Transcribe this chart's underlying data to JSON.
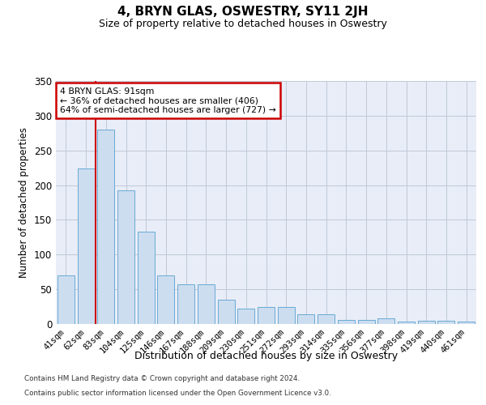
{
  "title": "4, BRYN GLAS, OSWESTRY, SY11 2JH",
  "subtitle": "Size of property relative to detached houses in Oswestry",
  "xlabel": "Distribution of detached houses by size in Oswestry",
  "ylabel": "Number of detached properties",
  "categories": [
    "41sqm",
    "62sqm",
    "83sqm",
    "104sqm",
    "125sqm",
    "146sqm",
    "167sqm",
    "188sqm",
    "209sqm",
    "230sqm",
    "251sqm",
    "272sqm",
    "293sqm",
    "314sqm",
    "335sqm",
    "356sqm",
    "377sqm",
    "398sqm",
    "419sqm",
    "440sqm",
    "461sqm"
  ],
  "values": [
    70,
    224,
    280,
    193,
    133,
    70,
    57,
    57,
    35,
    22,
    25,
    25,
    14,
    14,
    6,
    6,
    8,
    4,
    5,
    5,
    3
  ],
  "bar_color": "#ccddf0",
  "bar_edge_color": "#6aaad4",
  "vline_color": "#cc0000",
  "annotation_text": "4 BRYN GLAS: 91sqm\n← 36% of detached houses are smaller (406)\n64% of semi-detached houses are larger (727) →",
  "annotation_box_facecolor": "white",
  "annotation_box_edgecolor": "#cc0000",
  "ylim_max": 350,
  "yticks": [
    0,
    50,
    100,
    150,
    200,
    250,
    300,
    350
  ],
  "grid_color": "#c0c8d8",
  "axes_bg": "#e8edf7",
  "footer_line1": "Contains HM Land Registry data © Crown copyright and database right 2024.",
  "footer_line2": "Contains public sector information licensed under the Open Government Licence v3.0."
}
